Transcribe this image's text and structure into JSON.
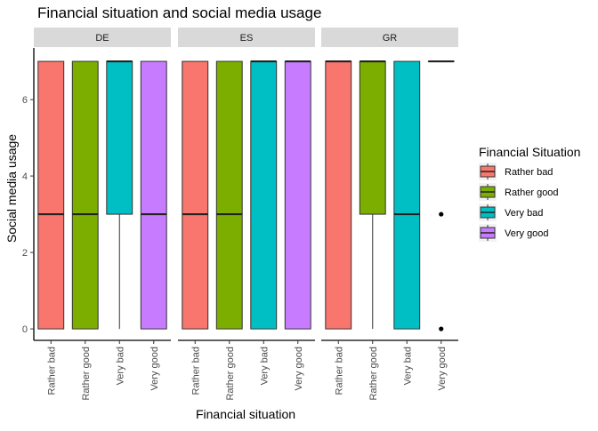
{
  "chart_data": {
    "type": "boxplot",
    "title": "Financial situation and social media usage",
    "xlabel": "Financial situation",
    "ylabel": "Social media usage",
    "ylim": [
      -0.3,
      7.35
    ],
    "y_ticks": [
      0,
      2,
      4,
      6
    ],
    "grid": false,
    "categories": [
      "Rather bad",
      "Rather good",
      "Very bad",
      "Very good"
    ],
    "colors": {
      "Rather bad": "#F8766D",
      "Rather good": "#7CAE00",
      "Very bad": "#00BFC4",
      "Very good": "#C77CFF"
    },
    "strip_color": "#d9d9d9",
    "legend": {
      "title": "Financial Situation",
      "position": "right",
      "entries": [
        "Rather bad",
        "Rather good",
        "Very bad",
        "Very good"
      ]
    },
    "panels": [
      {
        "name": "DE",
        "boxes": [
          {
            "category": "Rather bad",
            "min": 0,
            "q1": 0,
            "median": 3,
            "q3": 7,
            "max": 7,
            "outliers": []
          },
          {
            "category": "Rather good",
            "min": 0,
            "q1": 0,
            "median": 3,
            "q3": 7,
            "max": 7,
            "outliers": []
          },
          {
            "category": "Very bad",
            "min": 0,
            "q1": 3,
            "median": 7,
            "q3": 7,
            "max": 7,
            "outliers": []
          },
          {
            "category": "Very good",
            "min": 0,
            "q1": 0,
            "median": 3,
            "q3": 7,
            "max": 7,
            "outliers": []
          }
        ]
      },
      {
        "name": "ES",
        "boxes": [
          {
            "category": "Rather bad",
            "min": 0,
            "q1": 0,
            "median": 3,
            "q3": 7,
            "max": 7,
            "outliers": []
          },
          {
            "category": "Rather good",
            "min": 0,
            "q1": 0,
            "median": 3,
            "q3": 7,
            "max": 7,
            "outliers": []
          },
          {
            "category": "Very bad",
            "min": 0,
            "q1": 0,
            "median": 7,
            "q3": 7,
            "max": 7,
            "outliers": []
          },
          {
            "category": "Very good",
            "min": 0,
            "q1": 0,
            "median": 7,
            "q3": 7,
            "max": 7,
            "outliers": []
          }
        ]
      },
      {
        "name": "GR",
        "boxes": [
          {
            "category": "Rather bad",
            "min": 0,
            "q1": 0,
            "median": 7,
            "q3": 7,
            "max": 7,
            "outliers": []
          },
          {
            "category": "Rather good",
            "min": 0,
            "q1": 3,
            "median": 7,
            "q3": 7,
            "max": 7,
            "outliers": []
          },
          {
            "category": "Very bad",
            "min": 0,
            "q1": 0,
            "median": 3,
            "q3": 7,
            "max": 7,
            "outliers": []
          },
          {
            "category": "Very good",
            "min": 7,
            "q1": 7,
            "median": 7,
            "q3": 7,
            "max": 7,
            "outliers": [
              3,
              0
            ]
          }
        ]
      }
    ]
  }
}
